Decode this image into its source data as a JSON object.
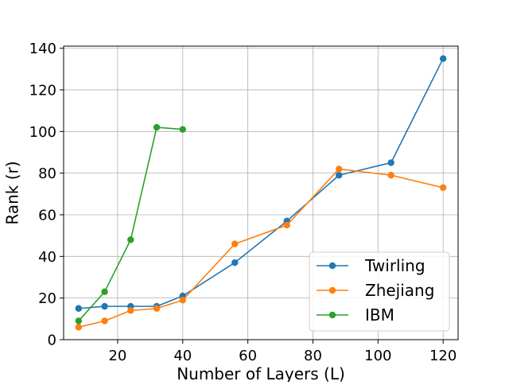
{
  "chart_data": {
    "type": "line",
    "title": "",
    "xlabel": "Number of Layers (L)",
    "ylabel": "Rank (r)",
    "xlim": [
      3.4,
      124.6
    ],
    "ylim": [
      0,
      141
    ],
    "xticks": [
      20,
      40,
      60,
      80,
      100,
      120
    ],
    "yticks": [
      0,
      20,
      40,
      60,
      80,
      100,
      120,
      140
    ],
    "grid": true,
    "legend_position": "lower-right",
    "series": [
      {
        "name": "Twirling",
        "color": "#1f77b4",
        "x": [
          8,
          16,
          24,
          32,
          40,
          56,
          72,
          88,
          104,
          120
        ],
        "y": [
          15,
          16,
          16,
          16,
          21,
          37,
          57,
          79,
          85,
          135
        ]
      },
      {
        "name": "Zhejiang",
        "color": "#ff7f0e",
        "x": [
          8,
          16,
          24,
          32,
          40,
          56,
          72,
          88,
          104,
          120
        ],
        "y": [
          6,
          9,
          14,
          15,
          19,
          46,
          55,
          82,
          79,
          73
        ]
      },
      {
        "name": "IBM",
        "color": "#2ca02c",
        "x": [
          8,
          16,
          24,
          32,
          40
        ],
        "y": [
          9,
          23,
          48,
          102,
          101
        ]
      }
    ]
  }
}
